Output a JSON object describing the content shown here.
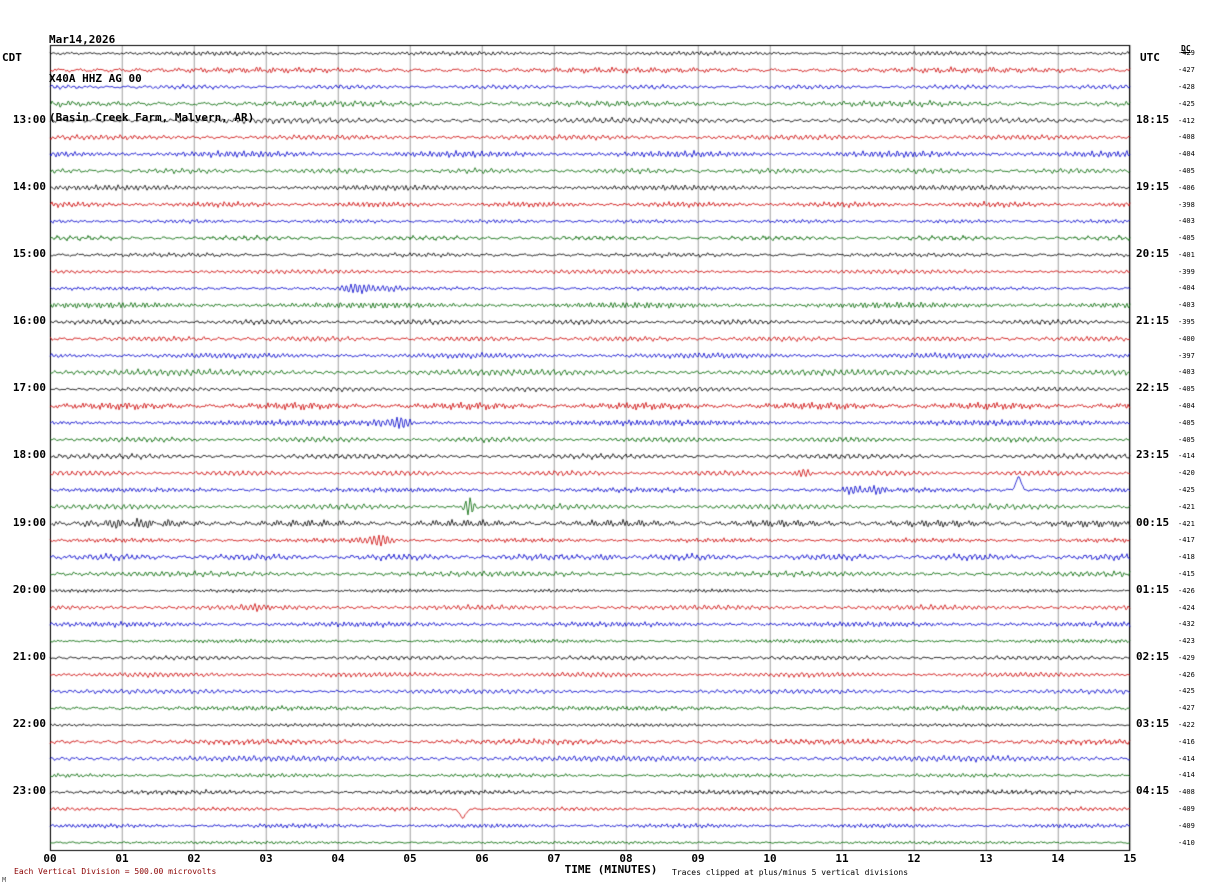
{
  "title": {
    "date": "Mar14,2026",
    "station": "X40A HHZ AG 00",
    "location": "(Basin Creek Farm, Malvern, AR)"
  },
  "axes": {
    "left_header": "CDT",
    "right_header": "UTC",
    "dc_header": "DC",
    "xlabel": "TIME (MINUTES)",
    "x_ticks": [
      "00",
      "01",
      "02",
      "03",
      "04",
      "05",
      "06",
      "07",
      "08",
      "09",
      "10",
      "11",
      "12",
      "13",
      "14",
      "15"
    ]
  },
  "footer": {
    "division_note": "Each Vertical Division =  500.00 microvolts",
    "clip_note": "Traces clipped at plus/minus 5 vertical divisions",
    "logo_mark": "M"
  },
  "left_hour_labels": [
    {
      "text": "13:00",
      "row": 4
    },
    {
      "text": "14:00",
      "row": 8
    },
    {
      "text": "15:00",
      "row": 12
    },
    {
      "text": "16:00",
      "row": 16
    },
    {
      "text": "17:00",
      "row": 20
    },
    {
      "text": "18:00",
      "row": 24
    },
    {
      "text": "19:00",
      "row": 28
    },
    {
      "text": "20:00",
      "row": 32
    },
    {
      "text": "21:00",
      "row": 36
    },
    {
      "text": "22:00",
      "row": 40
    },
    {
      "text": "23:00",
      "row": 44
    }
  ],
  "right_hour_labels": [
    {
      "text": "18:15",
      "row": 4
    },
    {
      "text": "19:15",
      "row": 8
    },
    {
      "text": "20:15",
      "row": 12
    },
    {
      "text": "21:15",
      "row": 16
    },
    {
      "text": "22:15",
      "row": 20
    },
    {
      "text": "23:15",
      "row": 24
    },
    {
      "text": "00:15",
      "row": 28
    },
    {
      "text": "01:15",
      "row": 32
    },
    {
      "text": "02:15",
      "row": 36
    },
    {
      "text": "03:15",
      "row": 40
    },
    {
      "text": "04:15",
      "row": 44
    }
  ],
  "chart_data": {
    "type": "line",
    "subtype": "seismogram-helicorder",
    "title": "X40A HHZ AG 00 (Basin Creek Farm, Malvern, AR) Mar14,2026",
    "xlabel": "TIME (MINUTES)",
    "x_range_minutes": [
      0,
      15
    ],
    "minutes_per_row": 15,
    "row_order": "48 rows top-to-bottom, each 15 minutes, starting 12:00 CDT; colors cycle black/red/blue/green; left labels = CDT start of hour, right labels = UTC time at end of hour trace; DC column = per-trace DC offset",
    "color_cycle": [
      "#000000",
      "#cc0000",
      "#0000cc",
      "#006600"
    ],
    "rows": [
      {
        "start_cdt": "12:00",
        "color": "black",
        "dc": -429
      },
      {
        "start_cdt": "12:15",
        "color": "red",
        "dc": -427
      },
      {
        "start_cdt": "12:30",
        "color": "blue",
        "dc": -428
      },
      {
        "start_cdt": "12:45",
        "color": "green",
        "dc": -425
      },
      {
        "start_cdt": "13:00",
        "color": "black",
        "dc": -412
      },
      {
        "start_cdt": "13:15",
        "color": "red",
        "dc": -408
      },
      {
        "start_cdt": "13:30",
        "color": "blue",
        "dc": -404
      },
      {
        "start_cdt": "13:45",
        "color": "green",
        "dc": -405
      },
      {
        "start_cdt": "14:00",
        "color": "black",
        "dc": -406
      },
      {
        "start_cdt": "14:15",
        "color": "red",
        "dc": -398
      },
      {
        "start_cdt": "14:30",
        "color": "blue",
        "dc": -403
      },
      {
        "start_cdt": "14:45",
        "color": "green",
        "dc": -405
      },
      {
        "start_cdt": "15:00",
        "color": "black",
        "dc": -401
      },
      {
        "start_cdt": "15:15",
        "color": "red",
        "dc": -399
      },
      {
        "start_cdt": "15:30",
        "color": "blue",
        "dc": -404
      },
      {
        "start_cdt": "15:45",
        "color": "green",
        "dc": -403
      },
      {
        "start_cdt": "16:00",
        "color": "black",
        "dc": -395
      },
      {
        "start_cdt": "16:15",
        "color": "red",
        "dc": -400
      },
      {
        "start_cdt": "16:30",
        "color": "blue",
        "dc": -397
      },
      {
        "start_cdt": "16:45",
        "color": "green",
        "dc": -403
      },
      {
        "start_cdt": "17:00",
        "color": "black",
        "dc": -405
      },
      {
        "start_cdt": "17:15",
        "color": "red",
        "dc": -404
      },
      {
        "start_cdt": "17:30",
        "color": "blue",
        "dc": -405
      },
      {
        "start_cdt": "17:45",
        "color": "green",
        "dc": -405
      },
      {
        "start_cdt": "18:00",
        "color": "black",
        "dc": -414
      },
      {
        "start_cdt": "18:15",
        "color": "red",
        "dc": -420
      },
      {
        "start_cdt": "18:30",
        "color": "blue",
        "dc": -425
      },
      {
        "start_cdt": "18:45",
        "color": "green",
        "dc": -421
      },
      {
        "start_cdt": "19:00",
        "color": "black",
        "dc": -421
      },
      {
        "start_cdt": "19:15",
        "color": "red",
        "dc": -417
      },
      {
        "start_cdt": "19:30",
        "color": "blue",
        "dc": -418
      },
      {
        "start_cdt": "19:45",
        "color": "green",
        "dc": -415
      },
      {
        "start_cdt": "20:00",
        "color": "black",
        "dc": -426
      },
      {
        "start_cdt": "20:15",
        "color": "red",
        "dc": -424
      },
      {
        "start_cdt": "20:30",
        "color": "blue",
        "dc": -432
      },
      {
        "start_cdt": "20:45",
        "color": "green",
        "dc": -423
      },
      {
        "start_cdt": "21:00",
        "color": "black",
        "dc": -429
      },
      {
        "start_cdt": "21:15",
        "color": "red",
        "dc": -426
      },
      {
        "start_cdt": "21:30",
        "color": "blue",
        "dc": -425
      },
      {
        "start_cdt": "21:45",
        "color": "green",
        "dc": -427
      },
      {
        "start_cdt": "22:00",
        "color": "black",
        "dc": -422
      },
      {
        "start_cdt": "22:15",
        "color": "red",
        "dc": -416
      },
      {
        "start_cdt": "22:30",
        "color": "blue",
        "dc": -414
      },
      {
        "start_cdt": "22:45",
        "color": "green",
        "dc": -414
      },
      {
        "start_cdt": "23:00",
        "color": "black",
        "dc": -408
      },
      {
        "start_cdt": "23:15",
        "color": "red",
        "dc": -409
      },
      {
        "start_cdt": "23:30",
        "color": "blue",
        "dc": -409
      },
      {
        "start_cdt": "23:45",
        "color": "green",
        "dc": -410
      }
    ],
    "events": [
      {
        "row": 14,
        "start_cdt": "15:30",
        "minute": 4.35,
        "amp": 4,
        "width": 0.3,
        "kind": "burst",
        "note": "small blue burst"
      },
      {
        "row": 22,
        "start_cdt": "17:30",
        "minute": 4.8,
        "amp": 5,
        "width": 0.18,
        "kind": "burst",
        "note": "blue burst near minute 05"
      },
      {
        "row": 25,
        "start_cdt": "18:15",
        "minute": 10.45,
        "amp": 4,
        "width": 0.09,
        "kind": "burst",
        "note": "small red blip"
      },
      {
        "row": 26,
        "start_cdt": "18:30",
        "minute": 11.3,
        "amp": 3.5,
        "width": 0.25,
        "kind": "burst",
        "note": "blue elevated activity"
      },
      {
        "row": 26,
        "start_cdt": "18:30",
        "minute": 13.45,
        "amp": 13,
        "width": 0.035,
        "kind": "spike",
        "note": "tall upward blue spike"
      },
      {
        "row": 27,
        "start_cdt": "18:45",
        "minute": 5.82,
        "amp": 8,
        "width": 0.06,
        "kind": "burst",
        "note": "sharp green spike"
      },
      {
        "row": 28,
        "start_cdt": "19:00",
        "minute": 1.0,
        "amp": 2.5,
        "width": 0.5,
        "kind": "burst",
        "note": "larger black wiggles at start"
      },
      {
        "row": 29,
        "start_cdt": "19:15",
        "minute": 4.55,
        "amp": 5,
        "width": 0.18,
        "kind": "burst",
        "note": "red burst"
      },
      {
        "row": 30,
        "start_cdt": "19:30",
        "minute": 7.7,
        "amp": 3,
        "width": 0.1,
        "kind": "burst",
        "note": "small blue blip"
      },
      {
        "row": 33,
        "start_cdt": "20:15",
        "minute": 2.95,
        "amp": 4,
        "width": 0.15,
        "kind": "burst",
        "note": "red burst"
      },
      {
        "row": 45,
        "start_cdt": "23:15",
        "minute": 5.73,
        "amp": -9,
        "width": 0.04,
        "kind": "spike",
        "note": "downward red spike"
      }
    ],
    "amplitude_note": "Background microseism noise roughly 0.3-0.8 vertical divisions peak-to-peak on every trace; grid on (vertical line each minute); legend none."
  }
}
